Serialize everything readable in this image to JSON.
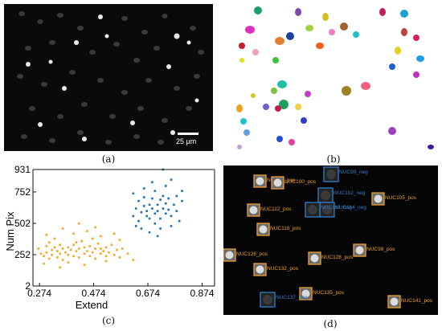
{
  "panels": {
    "a": {
      "caption": "(a)",
      "scale_bar_label": "25 µm"
    },
    "b": {
      "caption": "(b)"
    },
    "c": {
      "caption": "(c)"
    },
    "d": {
      "caption": "(d)",
      "nucleus_labels": [
        {
          "label": "NUC93_pos",
          "class": "pos"
        },
        {
          "label": "NUC99_neg",
          "class": "neg"
        },
        {
          "label": "NUC100_pos",
          "class": "pos"
        },
        {
          "label": "NUC102_neg",
          "class": "neg"
        },
        {
          "label": "NUC105_pos",
          "class": "pos"
        },
        {
          "label": "NUC112_pos",
          "class": "pos"
        },
        {
          "label": "NUC114_neg",
          "class": "neg"
        },
        {
          "label": "NUC116_neg",
          "class": "neg"
        },
        {
          "label": "NUC118_pos",
          "class": "pos"
        },
        {
          "label": "NUC98_pos",
          "class": "pos"
        },
        {
          "label": "NUC126_pos",
          "class": "pos"
        },
        {
          "label": "NUC128_pos",
          "class": "pos"
        },
        {
          "label": "NUC132_pos",
          "class": "pos"
        },
        {
          "label": "NUC135_pos",
          "class": "pos"
        },
        {
          "label": "NUC137_neg",
          "class": "neg"
        },
        {
          "label": "NUC141_pos",
          "class": "pos"
        }
      ]
    }
  },
  "colors": {
    "pos": "#f0a030",
    "neg": "#2f7fc8",
    "cluster_orange": "#f5a623",
    "cluster_blue": "#1f6fb5"
  },
  "chart_data": {
    "type": "scatter",
    "xlabel": "Extend",
    "ylabel": "Num Pix",
    "xticks": [
      "0.274",
      "0.474",
      "0.674",
      "0.874"
    ],
    "yticks": [
      "2",
      "252",
      "502",
      "752",
      "931"
    ],
    "xlim": [
      0.25,
      0.92
    ],
    "ylim": [
      2,
      931
    ],
    "series": [
      {
        "color": "#f5a623",
        "points": [
          [
            0.27,
            300
          ],
          [
            0.28,
            260
          ],
          [
            0.29,
            240
          ],
          [
            0.3,
            320
          ],
          [
            0.3,
            270
          ],
          [
            0.31,
            350
          ],
          [
            0.31,
            220
          ],
          [
            0.32,
            290
          ],
          [
            0.32,
            250
          ],
          [
            0.33,
            310
          ],
          [
            0.34,
            280
          ],
          [
            0.34,
            230
          ],
          [
            0.35,
            330
          ],
          [
            0.35,
            260
          ],
          [
            0.36,
            300
          ],
          [
            0.36,
            210
          ],
          [
            0.37,
            270
          ],
          [
            0.38,
            310
          ],
          [
            0.38,
            250
          ],
          [
            0.39,
            290
          ],
          [
            0.4,
            240
          ],
          [
            0.4,
            330
          ],
          [
            0.41,
            280
          ],
          [
            0.42,
            300
          ],
          [
            0.42,
            230
          ],
          [
            0.43,
            360
          ],
          [
            0.44,
            260
          ],
          [
            0.44,
            310
          ],
          [
            0.45,
            280
          ],
          [
            0.46,
            240
          ],
          [
            0.46,
            320
          ],
          [
            0.47,
            270
          ],
          [
            0.48,
            300
          ],
          [
            0.48,
            220
          ],
          [
            0.49,
            340
          ],
          [
            0.5,
            260
          ],
          [
            0.5,
            300
          ],
          [
            0.51,
            280
          ],
          [
            0.52,
            310
          ],
          [
            0.52,
            240
          ],
          [
            0.53,
            270
          ],
          [
            0.54,
            330
          ],
          [
            0.55,
            250
          ],
          [
            0.56,
            290
          ],
          [
            0.57,
            230
          ],
          [
            0.58,
            300
          ],
          [
            0.4,
            420
          ],
          [
            0.45,
            440
          ],
          [
            0.5,
            400
          ],
          [
            0.36,
            460
          ],
          [
            0.42,
            500
          ],
          [
            0.48,
            470
          ],
          [
            0.55,
            420
          ],
          [
            0.33,
            380
          ],
          [
            0.6,
            260
          ],
          [
            0.62,
            210
          ],
          [
            0.29,
            180
          ],
          [
            0.44,
            170
          ],
          [
            0.38,
            190
          ],
          [
            0.52,
            200
          ],
          [
            0.3,
            410
          ],
          [
            0.47,
            380
          ],
          [
            0.57,
            370
          ],
          [
            0.41,
            350
          ],
          [
            0.35,
            150
          ]
        ]
      },
      {
        "color": "#1f6fb5",
        "points": [
          [
            0.62,
            560
          ],
          [
            0.63,
            620
          ],
          [
            0.64,
            520
          ],
          [
            0.64,
            680
          ],
          [
            0.65,
            590
          ],
          [
            0.66,
            640
          ],
          [
            0.66,
            710
          ],
          [
            0.67,
            560
          ],
          [
            0.67,
            600
          ],
          [
            0.68,
            650
          ],
          [
            0.68,
            540
          ],
          [
            0.69,
            700
          ],
          [
            0.69,
            620
          ],
          [
            0.7,
            580
          ],
          [
            0.7,
            760
          ],
          [
            0.71,
            650
          ],
          [
            0.71,
            600
          ],
          [
            0.72,
            690
          ],
          [
            0.72,
            540
          ],
          [
            0.73,
            620
          ],
          [
            0.73,
            720
          ],
          [
            0.74,
            580
          ],
          [
            0.74,
            660
          ],
          [
            0.75,
            700
          ],
          [
            0.75,
            610
          ],
          [
            0.76,
            560
          ],
          [
            0.77,
            650
          ],
          [
            0.78,
            720
          ],
          [
            0.78,
            600
          ],
          [
            0.8,
            680
          ],
          [
            0.8,
            760
          ],
          [
            0.65,
            460
          ],
          [
            0.68,
            430
          ],
          [
            0.7,
            500
          ],
          [
            0.72,
            460
          ],
          [
            0.66,
            780
          ],
          [
            0.74,
            800
          ],
          [
            0.76,
            850
          ],
          [
            0.73,
            931
          ],
          [
            0.69,
            830
          ],
          [
            0.62,
            740
          ],
          [
            0.79,
            520
          ],
          [
            0.63,
            480
          ],
          [
            0.71,
            400
          ],
          [
            0.76,
            480
          ]
        ]
      }
    ]
  }
}
